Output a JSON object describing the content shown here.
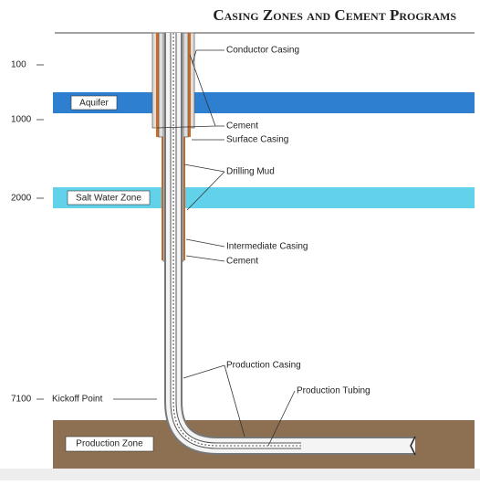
{
  "header": {
    "title": "Casing Zones and Cement Programs"
  },
  "depths": [
    "100",
    "1000",
    "2000",
    "7100"
  ],
  "zones": [
    "Aquifer",
    "Salt Water Zone",
    "Production Zone"
  ],
  "markers": {
    "kickoff": "Kickoff Point"
  },
  "callouts": [
    "Conductor Casing",
    "Cement",
    "Surface Casing",
    "Drilling Mud",
    "Intermediate Casing",
    "Cement",
    "Production Casing",
    "Production Tubing"
  ]
}
